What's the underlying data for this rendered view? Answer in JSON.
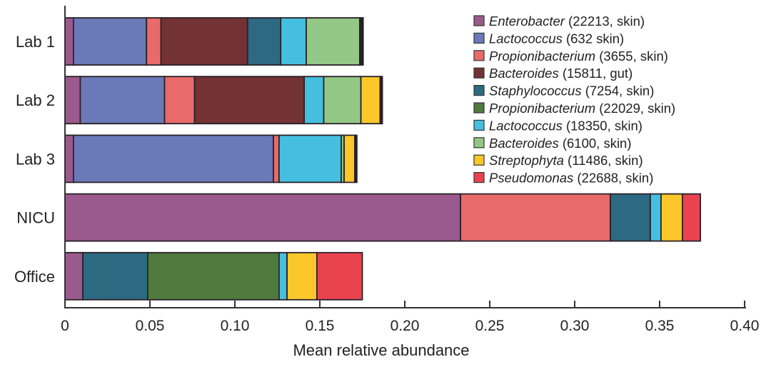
{
  "chart_data": {
    "type": "bar",
    "orientation": "horizontal",
    "stacked": true,
    "title": "",
    "xlabel": "Mean relative abundance",
    "ylabel": "",
    "xlim": [
      0,
      0.4
    ],
    "xticks": [
      "0",
      "0.05",
      "0.10",
      "0.15",
      "0.20",
      "0.25",
      "0.30",
      "0.35",
      "0.40"
    ],
    "xtick_values": [
      0,
      0.05,
      0.1,
      0.15,
      0.2,
      0.25,
      0.3,
      0.35,
      0.4
    ],
    "grid": false,
    "legend_placement": "top-right",
    "categories": [
      "Lab 1",
      "Lab 2",
      "Lab 3",
      "NICU",
      "Office"
    ],
    "series": [
      {
        "name": "Enterobacter",
        "detail": "(22213, skin)",
        "color": "#9b5a8e",
        "values": [
          0.005,
          0.009,
          0.005,
          0.2328,
          0.0105
        ]
      },
      {
        "name": "Lactococcus",
        "detail": "(632 skin)",
        "color": "#6a79b8",
        "values": [
          0.043,
          0.0496,
          0.1177,
          0,
          0
        ]
      },
      {
        "name": "Propionibacterium",
        "detail": "(3655, skin)",
        "color": "#e96a6a",
        "values": [
          0.0085,
          0.0177,
          0.0033,
          0.0882,
          0
        ]
      },
      {
        "name": "Bacteroides",
        "detail": "(15811, gut)",
        "color": "#733234",
        "values": [
          0.051,
          0.0645,
          0,
          0,
          0
        ]
      },
      {
        "name": "Staphylococcus",
        "detail": "(7254, skin)",
        "color": "#2c6a82",
        "values": [
          0.0195,
          0,
          0,
          0.0235,
          0.0382
        ]
      },
      {
        "name": "Propionibacterium",
        "detail": "(22029, skin)",
        "color": "#4f7a3e",
        "values": [
          0,
          0,
          0,
          0,
          0.0773
        ]
      },
      {
        "name": "Lactococcus",
        "detail": "(18350, skin)",
        "color": "#45bfe0",
        "values": [
          0.015,
          0.0115,
          0.0366,
          0.0063,
          0.0047
        ]
      },
      {
        "name": "Bacteroides",
        "detail": "(6100, skin)",
        "color": "#93c785",
        "values": [
          0.0315,
          0.0219,
          0.0017,
          0,
          0
        ]
      },
      {
        "name": "Streptophyta",
        "detail": "(11486, skin)",
        "color": "#fcc72a",
        "values": [
          0,
          0.0113,
          0.0063,
          0.0126,
          0.0176
        ]
      },
      {
        "name": "Pseudomonas",
        "detail": "(22688, skin)",
        "color": "#ea4350",
        "values": [
          0,
          0,
          0,
          0.0106,
          0.0267
        ]
      },
      {
        "color": "#222222",
        "values": [
          0.002,
          0.0013,
          0.0012,
          0,
          0
        ]
      }
    ]
  }
}
